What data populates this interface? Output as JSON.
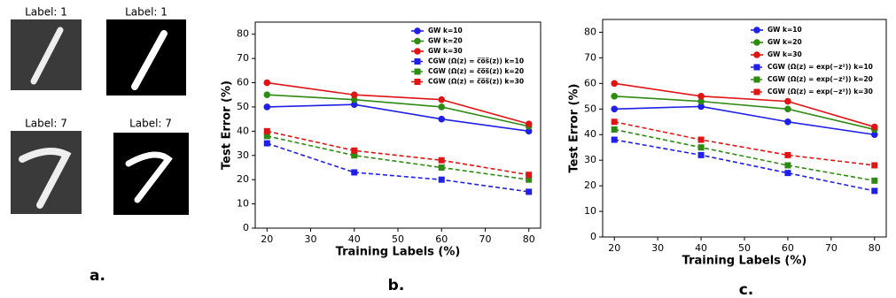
{
  "panel_a": {
    "labels": [
      "Label: 1",
      "Label: 1",
      "Label: 7",
      "Label: 7"
    ],
    "caption": "a."
  },
  "chart_data": [
    {
      "type": "line",
      "caption": "b.",
      "xlabel": "Training Labels (%)",
      "ylabel": "Test Error (%)",
      "x": [
        20,
        40,
        60,
        80
      ],
      "xlim": [
        17.3,
        82.7
      ],
      "xticks": [
        20,
        30,
        40,
        50,
        60,
        70,
        80
      ],
      "ylim": [
        0,
        85
      ],
      "yticks": [
        0,
        10,
        20,
        30,
        40,
        50,
        60,
        70,
        80
      ],
      "legend": "upper right",
      "series": [
        {
          "name": "GW k=10",
          "color": "#1f1fe6",
          "marker": "circle",
          "linestyle": "solid",
          "values": [
            50,
            51,
            45,
            40
          ]
        },
        {
          "name": "GW k=20",
          "color": "#2e8b12",
          "marker": "circle",
          "linestyle": "solid",
          "values": [
            55,
            53,
            50,
            42
          ]
        },
        {
          "name": "GW k=30",
          "color": "#e01414",
          "marker": "circle",
          "linestyle": "solid",
          "values": [
            60,
            55,
            53,
            43
          ]
        },
        {
          "name": "CGW (Ω(z) = c̅o̅s̅(z)) k=10",
          "color": "#1f1fe6",
          "marker": "square",
          "linestyle": "dashed",
          "values": [
            35,
            23,
            20,
            15
          ]
        },
        {
          "name": "CGW (Ω(z) = c̅o̅s̅(z)) k=20",
          "color": "#2e8b12",
          "marker": "square",
          "linestyle": "dashed",
          "values": [
            38,
            30,
            25,
            20
          ]
        },
        {
          "name": "CGW (Ω(z) = c̅o̅s̅(z)) k=30",
          "color": "#e01414",
          "marker": "square",
          "linestyle": "dashed",
          "values": [
            40,
            32,
            28,
            22
          ]
        }
      ]
    },
    {
      "type": "line",
      "caption": "c.",
      "xlabel": "Training Labels (%)",
      "ylabel": "Test Error (%)",
      "x": [
        20,
        40,
        60,
        80
      ],
      "xlim": [
        17.3,
        82.7
      ],
      "xticks": [
        20,
        30,
        40,
        50,
        60,
        70,
        80
      ],
      "ylim": [
        0,
        85
      ],
      "yticks": [
        0,
        10,
        20,
        30,
        40,
        50,
        60,
        70,
        80
      ],
      "legend": "upper right",
      "series": [
        {
          "name": "GW k=10",
          "color": "#1f1fe6",
          "marker": "circle",
          "linestyle": "solid",
          "values": [
            50,
            51,
            45,
            40
          ]
        },
        {
          "name": "GW k=20",
          "color": "#2e8b12",
          "marker": "circle",
          "linestyle": "solid",
          "values": [
            55,
            53,
            50,
            42
          ]
        },
        {
          "name": "GW k=30",
          "color": "#e01414",
          "marker": "circle",
          "linestyle": "solid",
          "values": [
            60,
            55,
            53,
            43
          ]
        },
        {
          "name": "CGW (Ω(z) = exp(−z²)) k=10",
          "color": "#1f1fe6",
          "marker": "square",
          "linestyle": "dashed",
          "values": [
            38,
            32,
            25,
            18
          ]
        },
        {
          "name": "CGW (Ω(z) = exp(−z²)) k=20",
          "color": "#2e8b12",
          "marker": "square",
          "linestyle": "dashed",
          "values": [
            42,
            35,
            28,
            22
          ]
        },
        {
          "name": "CGW (Ω(z) = exp(−z²)) k=30",
          "color": "#e01414",
          "marker": "square",
          "linestyle": "dashed",
          "values": [
            45,
            38,
            32,
            28
          ]
        }
      ]
    }
  ]
}
